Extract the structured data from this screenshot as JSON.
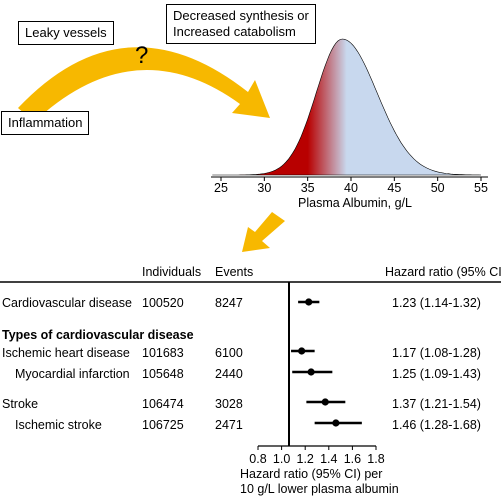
{
  "labels": {
    "leaky_vessels": "Leaky vessels",
    "synthesis": [
      "Decreased synthesis or",
      "Increased catabolism"
    ],
    "question": "?",
    "inflammation": "Inflammation"
  },
  "distribution": {
    "xlabel": "Plasma Albumin, g/L",
    "ticks": [
      "25",
      "30",
      "35",
      "40",
      "45",
      "50",
      "55"
    ],
    "xlim": [
      24,
      55
    ],
    "peak": 39,
    "colors": {
      "low": "#b80000",
      "high": "#c8d8ee"
    }
  },
  "forest": {
    "headers": {
      "individuals": "Individuals",
      "events": "Events",
      "hr": "Hazard ratio (95% CI)"
    },
    "section_title": "Types of cardiovascular disease",
    "rows": [
      {
        "label": "Cardiovascular disease",
        "individuals": "100520",
        "events": "8247",
        "hr": "1.23 (1.14-1.32)"
      },
      {
        "label": "Ischemic heart disease",
        "individuals": "101683",
        "events": "6100",
        "hr": "1.17 (1.08-1.28)"
      },
      {
        "label": "Myocardial infarction",
        "individuals": "105648",
        "events": "2440",
        "hr": "1.25 (1.09-1.43)"
      },
      {
        "label": "Stroke",
        "individuals": "106474",
        "events": "3028",
        "hr": "1.37 (1.21-1.54)"
      },
      {
        "label": "Ischemic stroke",
        "individuals": "106725",
        "events": "2471",
        "hr": "1.46 (1.28-1.68)"
      }
    ],
    "axis_ticks": [
      "0.8",
      "1.0",
      "1.2",
      "1.4",
      "1.6",
      "1.8"
    ],
    "axis_label": [
      "Hazard ratio (95% CI) per",
      "10 g/L lower plasma albumin"
    ]
  },
  "chart_data": {
    "type": "forest",
    "series": [
      {
        "name": "Cardiovascular disease",
        "hr": 1.23,
        "lo": 1.14,
        "hi": 1.32
      },
      {
        "name": "Ischemic heart disease",
        "hr": 1.17,
        "lo": 1.08,
        "hi": 1.28
      },
      {
        "name": "Myocardial infarction",
        "hr": 1.25,
        "lo": 1.09,
        "hi": 1.43
      },
      {
        "name": "Stroke",
        "hr": 1.37,
        "lo": 1.21,
        "hi": 1.54
      },
      {
        "name": "Ischemic stroke",
        "hr": 1.46,
        "lo": 1.28,
        "hi": 1.68
      }
    ],
    "xlim": [
      0.8,
      1.8
    ]
  }
}
